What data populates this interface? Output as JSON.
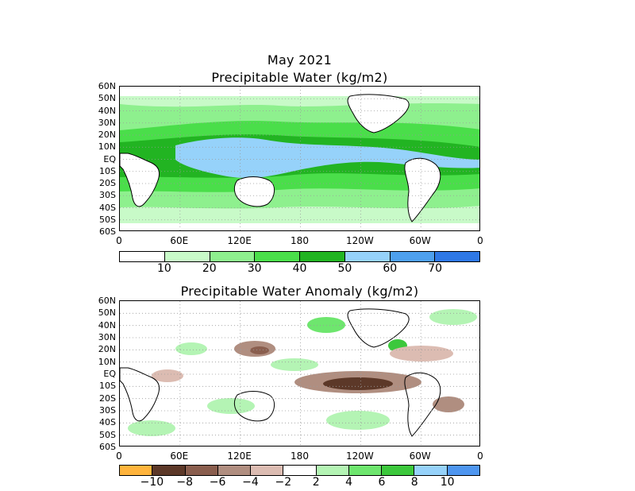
{
  "top": {
    "title_line1": "May 2021",
    "title_line2": "Precipitable Water (kg/m2)",
    "colorbar_colors": [
      "#ffffff",
      "#c8fac8",
      "#8ef08e",
      "#4ade4a",
      "#22b422",
      "#96d2fa",
      "#4ea0ee",
      "#2e78e6"
    ],
    "colorbar_labels": [
      "10",
      "20",
      "30",
      "40",
      "50",
      "60",
      "70"
    ]
  },
  "bottom": {
    "title": "Precipitable Water Anomaly (kg/m2)",
    "colorbar_colors": [
      "#ffb43c",
      "#5c3828",
      "#8a5e4e",
      "#b08e80",
      "#dcbcb2",
      "#ffffff",
      "#b4f4b4",
      "#6ee66e",
      "#3cc83c",
      "#96d2fa",
      "#4e96f0"
    ],
    "colorbar_labels": [
      "−10",
      "−8",
      "−6",
      "−4",
      "−2",
      "2",
      "4",
      "6",
      "8",
      "10"
    ]
  },
  "lat_labels": [
    "60N",
    "50N",
    "40N",
    "30N",
    "20N",
    "10N",
    "EQ",
    "10S",
    "20S",
    "30S",
    "40S",
    "50S",
    "60S"
  ],
  "lon_labels": [
    "0",
    "60E",
    "120E",
    "180",
    "120W",
    "60W",
    "0"
  ],
  "colors": {
    "land_outline": "#000000",
    "grid": "#9a9a9a"
  }
}
